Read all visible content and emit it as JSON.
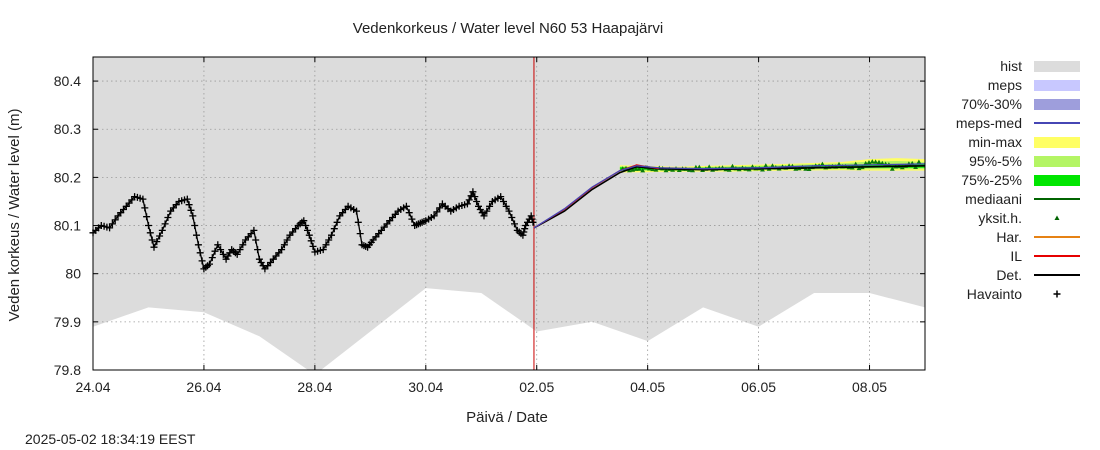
{
  "chart_data": {
    "type": "line",
    "title": "Vedenkorkeus / Water level   N60 53 Haapajärvi",
    "xlabel": "Päivä / Date",
    "ylabel": "Veden korkeus / Water level (m)",
    "timestamp": "2025-05-02 18:34:19 EEST",
    "xlim": [
      0,
      15
    ],
    "ylim": [
      79.8,
      80.45
    ],
    "x_ticks": [
      {
        "x": 0,
        "label": "24.04"
      },
      {
        "x": 2,
        "label": "26.04"
      },
      {
        "x": 4,
        "label": "28.04"
      },
      {
        "x": 6,
        "label": "30.04"
      },
      {
        "x": 8,
        "label": "02.05"
      },
      {
        "x": 10,
        "label": "04.05"
      },
      {
        "x": 12,
        "label": "06.05"
      },
      {
        "x": 14,
        "label": "08.05"
      }
    ],
    "y_ticks": [
      {
        "y": 79.8,
        "label": "79.8"
      },
      {
        "y": 79.9,
        "label": "79.9"
      },
      {
        "y": 80.0,
        "label": "80"
      },
      {
        "y": 80.1,
        "label": "80.1"
      },
      {
        "y": 80.2,
        "label": "80.2"
      },
      {
        "y": 80.3,
        "label": "80.3"
      },
      {
        "y": 80.4,
        "label": "80.4"
      }
    ],
    "grid": true,
    "current_time_x": 7.95,
    "hist_min": {
      "x": [
        0,
        1,
        2,
        3,
        4,
        5,
        6,
        7,
        8,
        9,
        10,
        11,
        12,
        13,
        14,
        15
      ],
      "y": [
        79.89,
        79.93,
        79.92,
        79.87,
        79.79,
        79.88,
        79.97,
        79.96,
        79.88,
        79.9,
        79.86,
        79.93,
        79.89,
        79.96,
        79.96,
        79.93
      ]
    },
    "observations": {
      "x": [
        0.0,
        0.15,
        0.3,
        0.45,
        0.6,
        0.75,
        0.9,
        1.0,
        1.1,
        1.25,
        1.4,
        1.55,
        1.7,
        1.8,
        1.9,
        2.0,
        2.1,
        2.25,
        2.4,
        2.5,
        2.6,
        2.75,
        2.9,
        3.0,
        3.1,
        3.25,
        3.4,
        3.55,
        3.7,
        3.8,
        3.9,
        4.0,
        4.15,
        4.3,
        4.45,
        4.6,
        4.75,
        4.85,
        4.95,
        5.05,
        5.2,
        5.35,
        5.5,
        5.65,
        5.8,
        5.9,
        6.0,
        6.15,
        6.3,
        6.45,
        6.6,
        6.75,
        6.85,
        6.95,
        7.05,
        7.2,
        7.35,
        7.5,
        7.65,
        7.75,
        7.8,
        7.9,
        7.95
      ],
      "y": [
        80.085,
        80.1,
        80.095,
        80.12,
        80.14,
        80.16,
        80.155,
        80.1,
        80.055,
        80.09,
        80.13,
        80.15,
        80.155,
        80.12,
        80.06,
        80.01,
        80.02,
        80.06,
        80.03,
        80.05,
        80.04,
        80.07,
        80.09,
        80.03,
        80.01,
        80.03,
        80.05,
        80.08,
        80.1,
        80.11,
        80.08,
        80.045,
        80.05,
        80.08,
        80.12,
        80.14,
        80.13,
        80.06,
        80.055,
        80.07,
        80.09,
        80.11,
        80.13,
        80.14,
        80.1,
        80.105,
        80.11,
        80.12,
        80.145,
        80.13,
        80.14,
        80.145,
        80.17,
        80.14,
        80.12,
        80.15,
        80.16,
        80.13,
        80.09,
        80.08,
        80.1,
        80.12,
        80.1
      ]
    },
    "det": {
      "x": [
        7.95,
        8.5,
        9.0,
        9.5,
        9.8,
        10.2,
        11.0,
        12.0,
        13.0,
        14.0,
        15.0
      ],
      "y": [
        80.095,
        80.13,
        80.175,
        80.21,
        80.222,
        80.218,
        80.216,
        80.218,
        80.22,
        80.222,
        80.224
      ]
    },
    "meps_med": {
      "x": [
        7.95,
        8.5,
        9.0,
        9.5,
        9.8,
        10.2,
        11.0,
        12.0,
        13.0,
        14.0,
        15.0
      ],
      "y": [
        80.095,
        80.135,
        80.18,
        80.214,
        80.224,
        80.22,
        80.218,
        80.22,
        80.224,
        80.226,
        80.228
      ]
    },
    "band_min_max": {
      "x": [
        9.5,
        10.5,
        11.5,
        12.5,
        13.5,
        14.0,
        14.5,
        15.0
      ],
      "low": [
        80.21,
        80.212,
        80.212,
        80.214,
        80.215,
        80.214,
        80.214,
        80.214
      ],
      "high": [
        80.225,
        80.222,
        80.225,
        80.228,
        80.232,
        80.238,
        80.24,
        80.238
      ]
    },
    "band_95_5": {
      "x": [
        9.5,
        10.5,
        11.5,
        12.5,
        13.5,
        14.0,
        14.5,
        15.0
      ],
      "low": [
        80.213,
        80.214,
        80.214,
        80.216,
        80.217,
        80.217,
        80.217,
        80.217
      ],
      "high": [
        80.223,
        80.22,
        80.223,
        80.226,
        80.229,
        80.233,
        80.234,
        80.232
      ]
    },
    "band_75_25": {
      "x": [
        9.5,
        10.5,
        11.5,
        12.5,
        13.5,
        14.0,
        14.5,
        15.0
      ],
      "low": [
        80.216,
        80.216,
        80.217,
        80.219,
        80.22,
        80.22,
        80.22,
        80.22
      ],
      "high": [
        80.221,
        80.219,
        80.221,
        80.223,
        80.225,
        80.227,
        80.227,
        80.227
      ]
    },
    "legend": {
      "position": "right",
      "entries": [
        {
          "label": "hist",
          "style": "box",
          "color": "#dcdcdc"
        },
        {
          "label": "meps",
          "style": "box",
          "color": "#c8c8ff"
        },
        {
          "label": "70%-30%",
          "style": "box",
          "color": "#9e9edc"
        },
        {
          "label": "meps-med",
          "style": "line",
          "color": "#4646b4"
        },
        {
          "label": "min-max",
          "style": "box",
          "color": "#ffff64"
        },
        {
          "label": "95%-5%",
          "style": "box",
          "color": "#b4f564"
        },
        {
          "label": "75%-25%",
          "style": "box",
          "color": "#00e600"
        },
        {
          "label": "mediaani",
          "style": "line",
          "color": "#006400"
        },
        {
          "label": "yksit.h.",
          "style": "triangle",
          "color": "#006400"
        },
        {
          "label": "Har.",
          "style": "line",
          "color": "#e68214"
        },
        {
          "label": "IL",
          "style": "line",
          "color": "#e60000"
        },
        {
          "label": "Det.",
          "style": "line",
          "color": "#000000"
        },
        {
          "label": "Havainto",
          "style": "plus",
          "color": "#000000"
        }
      ]
    },
    "colors": {
      "hist": "#dcdcdc",
      "grid": "#9a9a9a",
      "now_line": "#c80000",
      "det": "#000000",
      "observation": "#000000",
      "il": "#e60000",
      "meps_med": "#4646b4",
      "single_member": "#0a7a0a"
    }
  }
}
